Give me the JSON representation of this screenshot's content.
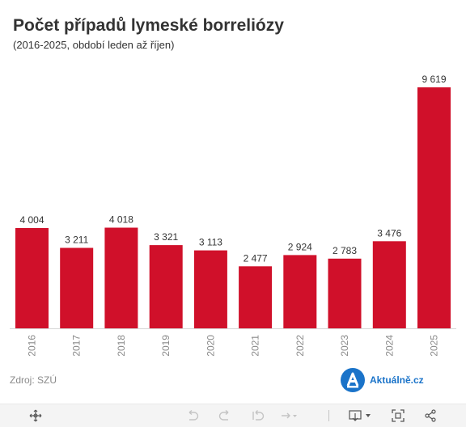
{
  "header": {
    "title": "Počet případů lymeské borreliózy",
    "subtitle": "(2016-2025, období leden až říjen)"
  },
  "footer": {
    "source": "Zdroj: SZÚ",
    "brand": "Aktuálně.cz"
  },
  "colors": {
    "bar": "#d0102a",
    "brand": "#1a73c9",
    "axis_text": "#8a8a8a"
  },
  "toolbar": {
    "icons": [
      "move-icon",
      "undo-icon",
      "redo-icon",
      "revert-icon",
      "pause-icon",
      "download-icon",
      "fullscreen-icon",
      "share-icon"
    ]
  },
  "chart_data": {
    "type": "bar",
    "title": "Počet případů lymeské borreliózy",
    "subtitle": "(2016-2025, období leden až říjen)",
    "categories": [
      "2016",
      "2017",
      "2018",
      "2019",
      "2020",
      "2021",
      "2022",
      "2023",
      "2024",
      "2025"
    ],
    "values": [
      4004,
      3211,
      4018,
      3321,
      3113,
      2477,
      2924,
      2783,
      3476,
      9619
    ],
    "labels": [
      "4 004",
      "3 211",
      "4 018",
      "3 321",
      "3 113",
      "2 477",
      "2 924",
      "2 783",
      "3 476",
      "9 619"
    ],
    "ylim": [
      0,
      9619
    ],
    "grid": false,
    "legend": "none"
  }
}
